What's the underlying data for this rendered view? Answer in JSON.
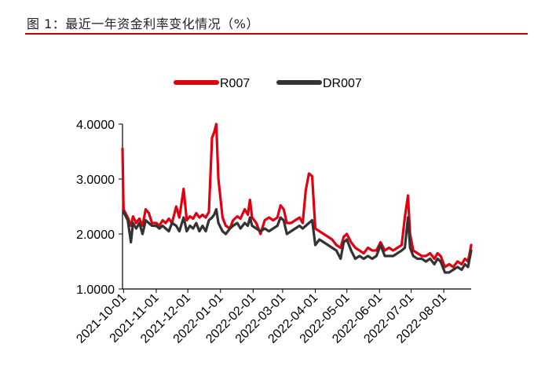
{
  "header": {
    "title": "图 1：最近一年资金利率变化情况（%）",
    "rule_color": "#c00000"
  },
  "chart_data": {
    "type": "line",
    "title": "",
    "xlabel": "",
    "ylabel": "",
    "ylim": [
      1.0,
      4.0
    ],
    "y_ticks": [
      "1.0000",
      "2.0000",
      "3.0000",
      "4.0000"
    ],
    "x_range": [
      "2021-09-30",
      "2022-08-27"
    ],
    "x_ticks": [
      "2021-10-01",
      "2021-11-01",
      "2021-12-01",
      "2022-01-01",
      "2022-02-01",
      "2022-03-01",
      "2022-04-01",
      "2022-05-01",
      "2022-06-01",
      "2022-07-01",
      "2022-08-01"
    ],
    "grid": false,
    "legend_position": "top-center",
    "series": [
      {
        "name": "R007",
        "color": "#e0000f",
        "points": [
          [
            "2021-09-30",
            3.55
          ],
          [
            "2021-10-01",
            2.45
          ],
          [
            "2021-10-05",
            2.3
          ],
          [
            "2021-10-08",
            2.15
          ],
          [
            "2021-10-10",
            2.32
          ],
          [
            "2021-10-13",
            2.2
          ],
          [
            "2021-10-16",
            2.28
          ],
          [
            "2021-10-19",
            2.15
          ],
          [
            "2021-10-22",
            2.45
          ],
          [
            "2021-10-25",
            2.38
          ],
          [
            "2021-10-28",
            2.2
          ],
          [
            "2021-11-01",
            2.2
          ],
          [
            "2021-11-04",
            2.15
          ],
          [
            "2021-11-07",
            2.25
          ],
          [
            "2021-11-10",
            2.2
          ],
          [
            "2021-11-13",
            2.28
          ],
          [
            "2021-11-16",
            2.2
          ],
          [
            "2021-11-20",
            2.5
          ],
          [
            "2021-11-23",
            2.3
          ],
          [
            "2021-11-27",
            2.82
          ],
          [
            "2021-11-30",
            2.25
          ],
          [
            "2021-12-03",
            2.32
          ],
          [
            "2021-12-06",
            2.28
          ],
          [
            "2021-12-09",
            2.38
          ],
          [
            "2021-12-12",
            2.3
          ],
          [
            "2021-12-15",
            2.35
          ],
          [
            "2021-12-18",
            2.3
          ],
          [
            "2021-12-21",
            2.4
          ],
          [
            "2021-12-24",
            3.75
          ],
          [
            "2021-12-26",
            3.85
          ],
          [
            "2021-12-28",
            4.0
          ],
          [
            "2021-12-30",
            3.0
          ],
          [
            "2022-01-03",
            2.3
          ],
          [
            "2022-01-06",
            2.15
          ],
          [
            "2022-01-10",
            2.1
          ],
          [
            "2022-01-13",
            2.25
          ],
          [
            "2022-01-17",
            2.32
          ],
          [
            "2022-01-20",
            2.28
          ],
          [
            "2022-01-24",
            2.45
          ],
          [
            "2022-01-27",
            2.35
          ],
          [
            "2022-01-29",
            2.62
          ],
          [
            "2022-01-31",
            2.3
          ],
          [
            "2022-02-04",
            2.2
          ],
          [
            "2022-02-08",
            2.0
          ],
          [
            "2022-02-12",
            2.25
          ],
          [
            "2022-02-16",
            2.3
          ],
          [
            "2022-02-20",
            2.25
          ],
          [
            "2022-02-24",
            2.3
          ],
          [
            "2022-02-27",
            2.52
          ],
          [
            "2022-03-02",
            2.45
          ],
          [
            "2022-03-05",
            2.2
          ],
          [
            "2022-03-09",
            2.2
          ],
          [
            "2022-03-13",
            2.25
          ],
          [
            "2022-03-17",
            2.3
          ],
          [
            "2022-03-20",
            2.2
          ],
          [
            "2022-03-23",
            2.8
          ],
          [
            "2022-03-26",
            3.1
          ],
          [
            "2022-03-29",
            3.05
          ],
          [
            "2022-04-01",
            2.1
          ],
          [
            "2022-04-05",
            2.05
          ],
          [
            "2022-04-09",
            2.0
          ],
          [
            "2022-04-13",
            1.95
          ],
          [
            "2022-04-17",
            1.9
          ],
          [
            "2022-04-21",
            1.8
          ],
          [
            "2022-04-25",
            1.75
          ],
          [
            "2022-04-28",
            1.95
          ],
          [
            "2022-05-01",
            2.0
          ],
          [
            "2022-05-05",
            1.85
          ],
          [
            "2022-05-09",
            1.75
          ],
          [
            "2022-05-13",
            1.7
          ],
          [
            "2022-05-17",
            1.65
          ],
          [
            "2022-05-21",
            1.75
          ],
          [
            "2022-05-25",
            1.7
          ],
          [
            "2022-05-29",
            1.7
          ],
          [
            "2022-06-02",
            1.85
          ],
          [
            "2022-06-06",
            1.7
          ],
          [
            "2022-06-10",
            1.75
          ],
          [
            "2022-06-14",
            1.7
          ],
          [
            "2022-06-18",
            1.75
          ],
          [
            "2022-06-22",
            1.8
          ],
          [
            "2022-06-25",
            2.3
          ],
          [
            "2022-06-28",
            2.7
          ],
          [
            "2022-06-30",
            2.0
          ],
          [
            "2022-07-03",
            1.7
          ],
          [
            "2022-07-07",
            1.65
          ],
          [
            "2022-07-11",
            1.6
          ],
          [
            "2022-07-15",
            1.6
          ],
          [
            "2022-07-19",
            1.65
          ],
          [
            "2022-07-23",
            1.55
          ],
          [
            "2022-07-26",
            1.65
          ],
          [
            "2022-07-29",
            1.6
          ],
          [
            "2022-08-02",
            1.4
          ],
          [
            "2022-08-06",
            1.45
          ],
          [
            "2022-08-10",
            1.4
          ],
          [
            "2022-08-14",
            1.5
          ],
          [
            "2022-08-18",
            1.45
          ],
          [
            "2022-08-21",
            1.55
          ],
          [
            "2022-08-24",
            1.5
          ],
          [
            "2022-08-27",
            1.8
          ]
        ]
      },
      {
        "name": "DR007",
        "color": "#333333",
        "points": [
          [
            "2021-10-01",
            2.4
          ],
          [
            "2021-10-05",
            2.25
          ],
          [
            "2021-10-08",
            1.85
          ],
          [
            "2021-10-10",
            2.2
          ],
          [
            "2021-10-13",
            2.1
          ],
          [
            "2021-10-16",
            2.2
          ],
          [
            "2021-10-19",
            2.0
          ],
          [
            "2021-10-22",
            2.25
          ],
          [
            "2021-10-25",
            2.2
          ],
          [
            "2021-10-28",
            2.15
          ],
          [
            "2021-11-01",
            2.15
          ],
          [
            "2021-11-04",
            2.1
          ],
          [
            "2021-11-07",
            2.15
          ],
          [
            "2021-11-10",
            2.1
          ],
          [
            "2021-11-13",
            2.05
          ],
          [
            "2021-11-16",
            2.2
          ],
          [
            "2021-11-20",
            2.15
          ],
          [
            "2021-11-23",
            2.05
          ],
          [
            "2021-11-27",
            2.3
          ],
          [
            "2021-11-30",
            2.05
          ],
          [
            "2021-12-03",
            2.15
          ],
          [
            "2021-12-06",
            2.1
          ],
          [
            "2021-12-09",
            2.2
          ],
          [
            "2021-12-12",
            2.05
          ],
          [
            "2021-12-15",
            2.15
          ],
          [
            "2021-12-18",
            2.05
          ],
          [
            "2021-12-21",
            2.25
          ],
          [
            "2021-12-24",
            2.3
          ],
          [
            "2021-12-26",
            2.35
          ],
          [
            "2021-12-28",
            2.45
          ],
          [
            "2021-12-30",
            2.2
          ],
          [
            "2022-01-03",
            2.05
          ],
          [
            "2022-01-06",
            2.0
          ],
          [
            "2022-01-10",
            2.1
          ],
          [
            "2022-01-13",
            2.15
          ],
          [
            "2022-01-17",
            2.2
          ],
          [
            "2022-01-20",
            2.1
          ],
          [
            "2022-01-24",
            2.2
          ],
          [
            "2022-01-27",
            2.15
          ],
          [
            "2022-01-29",
            2.3
          ],
          [
            "2022-01-31",
            2.15
          ],
          [
            "2022-02-04",
            2.1
          ],
          [
            "2022-02-08",
            2.05
          ],
          [
            "2022-02-12",
            2.1
          ],
          [
            "2022-02-16",
            2.05
          ],
          [
            "2022-02-20",
            2.1
          ],
          [
            "2022-02-24",
            2.15
          ],
          [
            "2022-02-27",
            2.3
          ],
          [
            "2022-03-02",
            2.25
          ],
          [
            "2022-03-05",
            2.0
          ],
          [
            "2022-03-09",
            2.05
          ],
          [
            "2022-03-13",
            2.1
          ],
          [
            "2022-03-17",
            2.15
          ],
          [
            "2022-03-20",
            2.1
          ],
          [
            "2022-03-23",
            2.15
          ],
          [
            "2022-03-26",
            2.2
          ],
          [
            "2022-03-29",
            2.25
          ],
          [
            "2022-04-01",
            1.8
          ],
          [
            "2022-04-05",
            1.9
          ],
          [
            "2022-04-09",
            1.85
          ],
          [
            "2022-04-13",
            1.8
          ],
          [
            "2022-04-17",
            1.75
          ],
          [
            "2022-04-21",
            1.7
          ],
          [
            "2022-04-25",
            1.55
          ],
          [
            "2022-04-28",
            1.85
          ],
          [
            "2022-05-01",
            1.9
          ],
          [
            "2022-05-05",
            1.7
          ],
          [
            "2022-05-09",
            1.55
          ],
          [
            "2022-05-13",
            1.6
          ],
          [
            "2022-05-17",
            1.55
          ],
          [
            "2022-05-21",
            1.6
          ],
          [
            "2022-05-25",
            1.55
          ],
          [
            "2022-05-29",
            1.6
          ],
          [
            "2022-06-02",
            1.8
          ],
          [
            "2022-06-06",
            1.6
          ],
          [
            "2022-06-10",
            1.6
          ],
          [
            "2022-06-14",
            1.6
          ],
          [
            "2022-06-18",
            1.65
          ],
          [
            "2022-06-22",
            1.7
          ],
          [
            "2022-06-25",
            1.75
          ],
          [
            "2022-06-28",
            2.3
          ],
          [
            "2022-06-30",
            1.75
          ],
          [
            "2022-07-03",
            1.6
          ],
          [
            "2022-07-07",
            1.55
          ],
          [
            "2022-07-11",
            1.55
          ],
          [
            "2022-07-15",
            1.5
          ],
          [
            "2022-07-19",
            1.55
          ],
          [
            "2022-07-23",
            1.45
          ],
          [
            "2022-07-26",
            1.55
          ],
          [
            "2022-07-29",
            1.5
          ],
          [
            "2022-08-02",
            1.3
          ],
          [
            "2022-08-06",
            1.3
          ],
          [
            "2022-08-10",
            1.35
          ],
          [
            "2022-08-14",
            1.4
          ],
          [
            "2022-08-18",
            1.35
          ],
          [
            "2022-08-21",
            1.45
          ],
          [
            "2022-08-24",
            1.4
          ],
          [
            "2022-08-27",
            1.7
          ]
        ]
      }
    ]
  }
}
